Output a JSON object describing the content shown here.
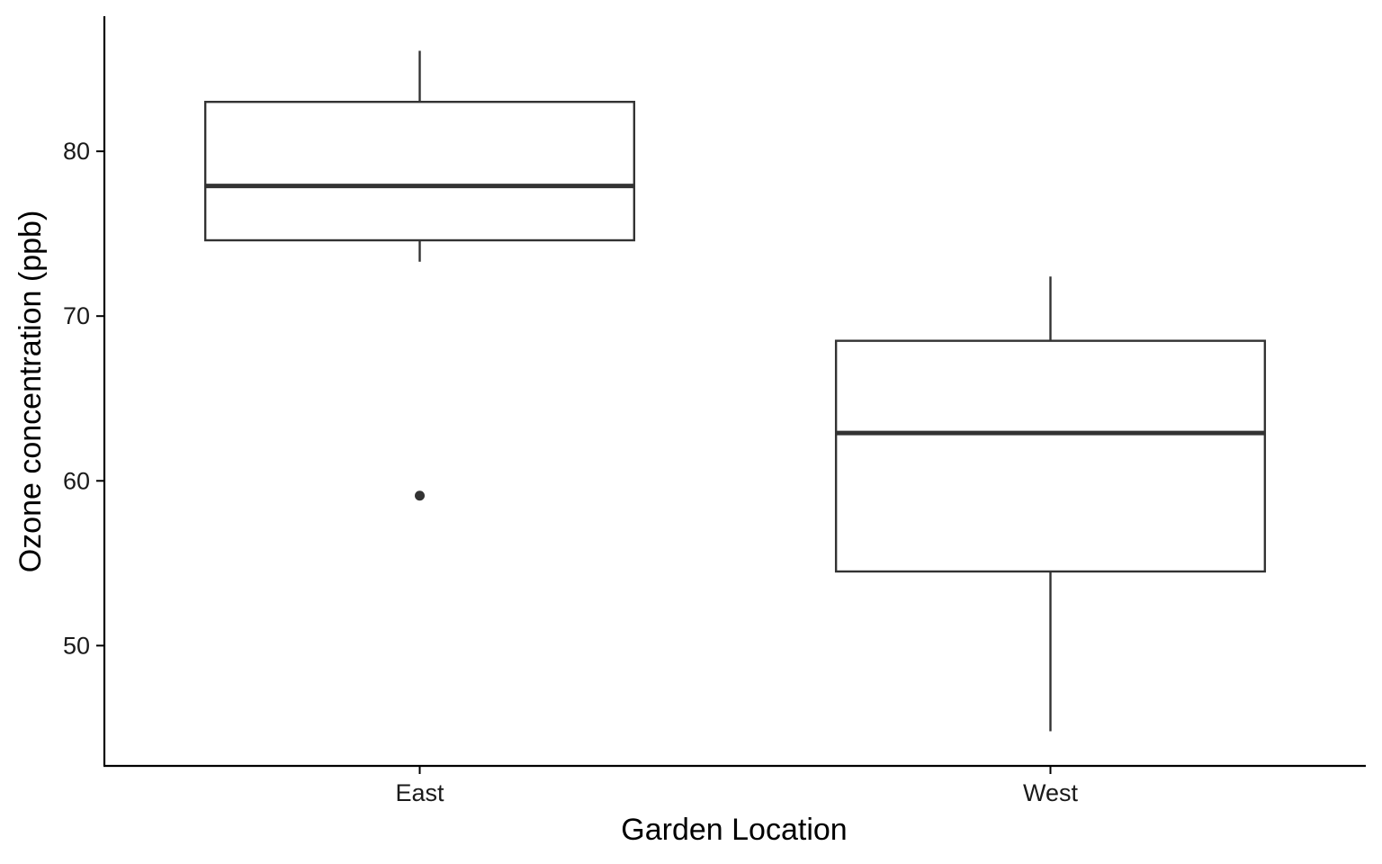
{
  "chart_data": {
    "type": "boxplot",
    "xlabel": "Garden Location",
    "ylabel": "Ozone concentration (ppb)",
    "categories": [
      "East",
      "West"
    ],
    "yticks": [
      50,
      60,
      70,
      80
    ],
    "ylim": [
      42.7,
      88.2
    ],
    "grid": false,
    "boxes": [
      {
        "category": "East",
        "whisker_low": 73.3,
        "q1": 74.6,
        "median": 77.9,
        "q3": 83.0,
        "whisker_high": 86.1,
        "outliers": [
          59.1
        ]
      },
      {
        "category": "West",
        "whisker_low": 44.8,
        "q1": 54.5,
        "median": 62.9,
        "q3": 68.5,
        "whisker_high": 72.4,
        "outliers": []
      }
    ]
  }
}
